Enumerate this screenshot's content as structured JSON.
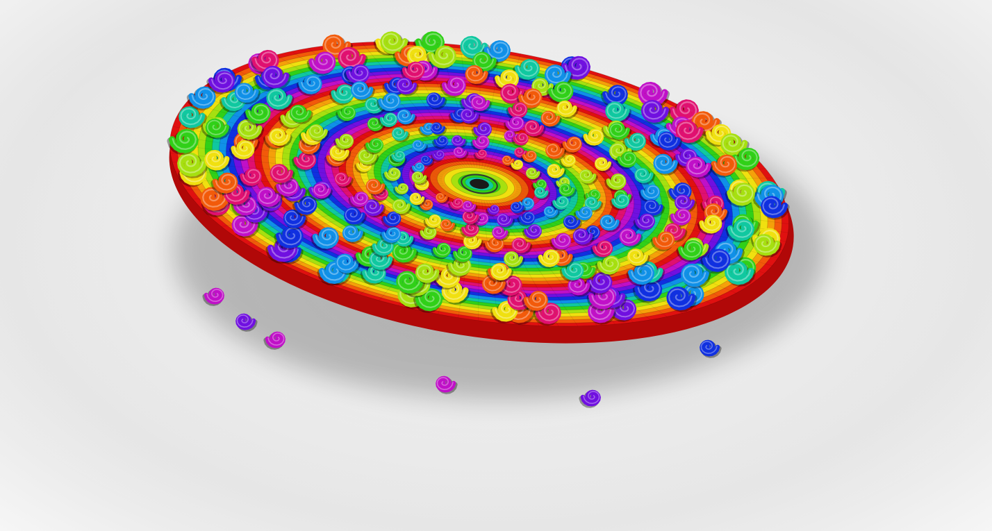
{
  "scene": {
    "subject": "rainbow-spiral-disc",
    "background_color": "#e9e9e9",
    "ring_colors": [
      "#e01010",
      "#f25a0a",
      "#f5a00a",
      "#f0e010",
      "#a6e010",
      "#30d018",
      "#10c8a0",
      "#1090e8",
      "#1030e0",
      "#7010e0",
      "#c010c8",
      "#e01070"
    ],
    "curl_colors": [
      "#f0e010",
      "#a6e010",
      "#30d018",
      "#10c8a0",
      "#1090e8",
      "#1030e0",
      "#7010e0",
      "#c010c8",
      "#e01070",
      "#f25a0a"
    ]
  }
}
